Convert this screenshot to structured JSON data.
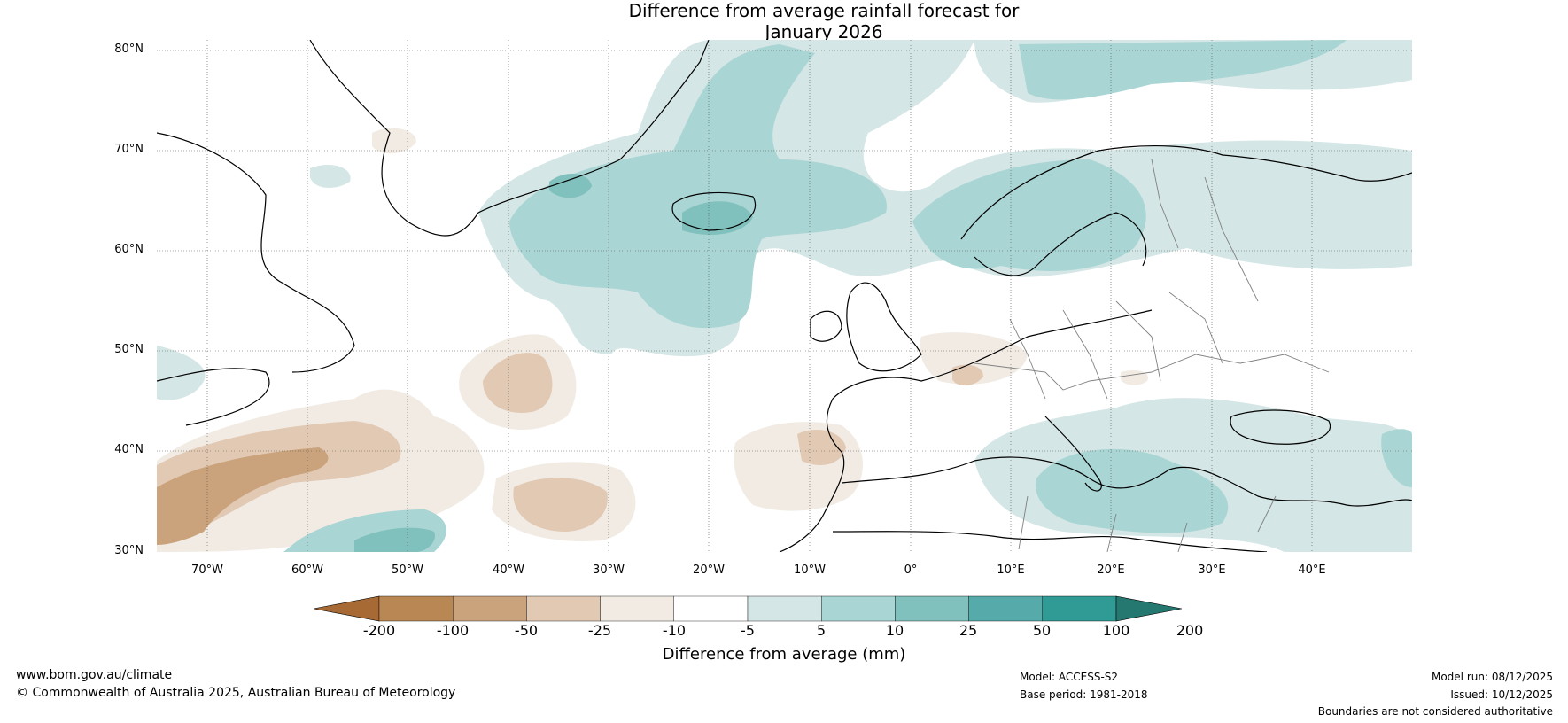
{
  "title": {
    "line1": "Difference from average rainfall forecast for",
    "line2": "January 2026"
  },
  "lat_labels": [
    "80°N",
    "70°N",
    "60°N",
    "50°N",
    "40°N",
    "30°N"
  ],
  "lon_labels": [
    "70°W",
    "60°W",
    "50°W",
    "40°W",
    "30°W",
    "20°W",
    "10°W",
    "0°",
    "10°E",
    "20°E",
    "30°E",
    "40°E"
  ],
  "colorbar": {
    "ticks": [
      "-200",
      "-100",
      "-50",
      "-25",
      "-10",
      "-5",
      "5",
      "10",
      "25",
      "50",
      "100",
      "200"
    ],
    "colors": [
      "#a86a34",
      "#b98753",
      "#caa27b",
      "#e1c9b3",
      "#f1ebe4",
      "#ffffff",
      "#d4e6e5",
      "#a9d5d4",
      "#80c0bd",
      "#56aaa9",
      "#309a95",
      "#25786f"
    ],
    "label": "Difference from average (mm)"
  },
  "footer": {
    "website": "www.bom.gov.au/climate",
    "copyright": "© Commonwealth of Australia 2025, Australian Bureau of Meteorology",
    "model": "Model: ACCESS-S2",
    "base_period": "Base period: 1981-2018",
    "model_run": "Model run: 08/12/2025",
    "issued": "Issued: 10/12/2025",
    "disclaimer": "Boundaries are not considered authoritative"
  }
}
